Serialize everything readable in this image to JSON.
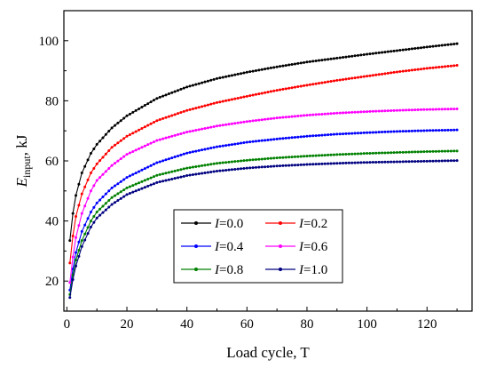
{
  "chart_data": {
    "type": "line",
    "xlabel": "Load cycle, T",
    "ylabel_main": "E",
    "ylabel_sub": "input",
    "ylabel_unit": ", kJ",
    "xlim": [
      -1,
      135
    ],
    "ylim": [
      10,
      110
    ],
    "x_ticks": [
      0,
      20,
      40,
      60,
      80,
      100,
      120
    ],
    "y_ticks": [
      20,
      40,
      60,
      80,
      100
    ],
    "grid": false,
    "legend_position": "center, lower-middle (2 columns)",
    "x": [
      1,
      2,
      3,
      5,
      8,
      10,
      15,
      20,
      30,
      40,
      50,
      60,
      70,
      80,
      90,
      100,
      110,
      120,
      130
    ],
    "series": [
      {
        "name_var": "I",
        "name_val": "=0.0",
        "color": "#000000",
        "values": [
          33.5,
          42.5,
          48.5,
          56,
          62.5,
          65.5,
          71,
          75,
          80.8,
          84.6,
          87.4,
          89.5,
          91.3,
          92.9,
          94.2,
          95.5,
          96.7,
          97.9,
          99
        ]
      },
      {
        "name_var": "I",
        "name_val": "=0.2",
        "color": "#ff0000",
        "values": [
          26,
          35,
          41.5,
          49,
          56,
          59,
          64.5,
          68.2,
          73.4,
          76.8,
          79.4,
          81.5,
          83.5,
          85.2,
          86.8,
          88.2,
          89.6,
          90.8,
          91.8
        ]
      },
      {
        "name_var": "I",
        "name_val": "=0.4",
        "color": "#0000ff",
        "values": [
          17,
          24,
          29.5,
          36.5,
          43,
          46,
          51,
          54.5,
          59.4,
          62.6,
          64.7,
          66.2,
          67.3,
          68.2,
          68.9,
          69.4,
          69.8,
          70.1,
          70.3
        ]
      },
      {
        "name_var": "I",
        "name_val": "=0.6",
        "color": "#ff00ff",
        "values": [
          19.5,
          28,
          34.5,
          42.5,
          50,
          53.5,
          58.5,
          62.2,
          66.8,
          69.6,
          71.6,
          73.1,
          74.3,
          75.2,
          75.9,
          76.4,
          76.8,
          77.1,
          77.3
        ]
      },
      {
        "name_var": "I",
        "name_val": "=0.8",
        "color": "#008000",
        "values": [
          15.5,
          22,
          27,
          33.5,
          40,
          43,
          47.8,
          51,
          55.2,
          57.6,
          59.2,
          60.2,
          61,
          61.6,
          62.1,
          62.5,
          62.8,
          63.1,
          63.3
        ]
      },
      {
        "name_var": "I",
        "name_val": "=1.0",
        "color": "#000080",
        "values": [
          14.5,
          20.5,
          25,
          31.5,
          38,
          41,
          45.5,
          48.8,
          52.8,
          55.1,
          56.6,
          57.6,
          58.3,
          58.8,
          59.2,
          59.5,
          59.7,
          59.9,
          60.1
        ]
      }
    ]
  }
}
